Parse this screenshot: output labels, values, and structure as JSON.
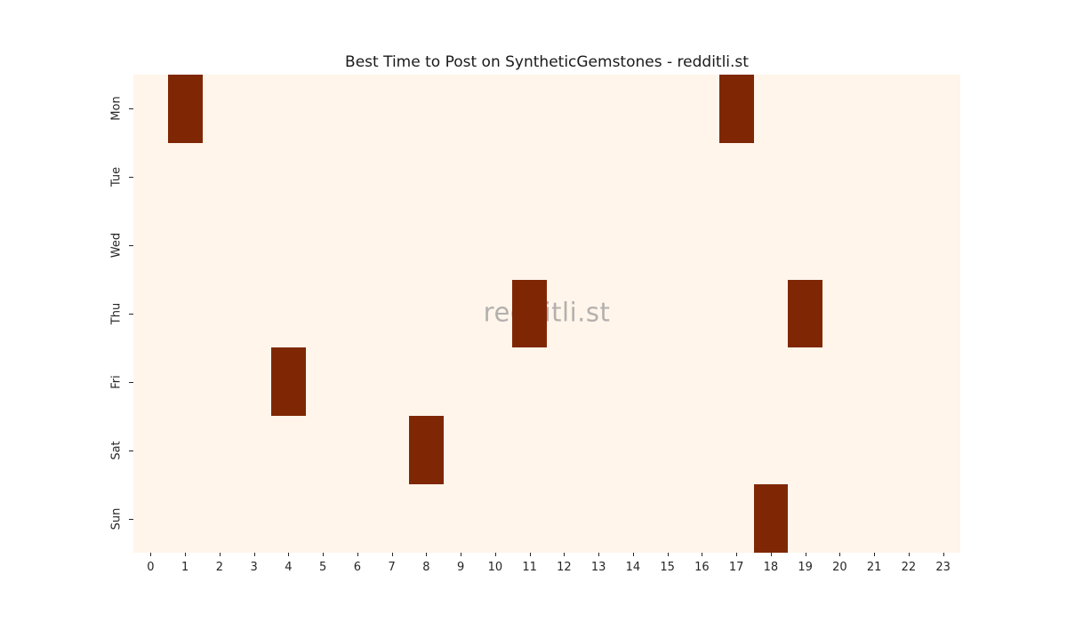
{
  "chart_data": {
    "type": "heatmap",
    "title": "Best Time to Post on SyntheticGemstones - redditli.st",
    "watermark": "redditli.st",
    "xlabel": "",
    "ylabel": "",
    "x_tick_labels": [
      "0",
      "1",
      "2",
      "3",
      "4",
      "5",
      "6",
      "7",
      "8",
      "9",
      "10",
      "11",
      "12",
      "13",
      "14",
      "15",
      "16",
      "17",
      "18",
      "19",
      "20",
      "21",
      "22",
      "23"
    ],
    "y_tick_labels": [
      "Mon",
      "Tue",
      "Wed",
      "Thu",
      "Fri",
      "Sat",
      "Sun"
    ],
    "grid": false,
    "legend": "none",
    "colormap": "Oranges",
    "value_range": [
      0,
      1
    ],
    "matrix": [
      [
        0,
        1,
        0,
        0,
        0,
        0,
        0,
        0,
        0,
        0,
        0,
        0,
        0,
        0,
        0,
        0,
        0,
        1,
        0,
        0,
        0,
        0,
        0,
        0
      ],
      [
        0,
        0,
        0,
        0,
        0,
        0,
        0,
        0,
        0,
        0,
        0,
        0,
        0,
        0,
        0,
        0,
        0,
        0,
        0,
        0,
        0,
        0,
        0,
        0
      ],
      [
        0,
        0,
        0,
        0,
        0,
        0,
        0,
        0,
        0,
        0,
        0,
        0,
        0,
        0,
        0,
        0,
        0,
        0,
        0,
        0,
        0,
        0,
        0,
        0
      ],
      [
        0,
        0,
        0,
        0,
        0,
        0,
        0,
        0,
        0,
        0,
        0,
        1,
        0,
        0,
        0,
        0,
        0,
        0,
        0,
        1,
        0,
        0,
        0,
        0
      ],
      [
        0,
        0,
        0,
        0,
        1,
        0,
        0,
        0,
        0,
        0,
        0,
        0,
        0,
        0,
        0,
        0,
        0,
        0,
        0,
        0,
        0,
        0,
        0,
        0
      ],
      [
        0,
        0,
        0,
        0,
        0,
        0,
        0,
        0,
        1,
        0,
        0,
        0,
        0,
        0,
        0,
        0,
        0,
        0,
        0,
        0,
        0,
        0,
        0,
        0
      ],
      [
        0,
        0,
        0,
        0,
        0,
        0,
        0,
        0,
        0,
        0,
        0,
        0,
        0,
        0,
        0,
        0,
        0,
        0,
        1,
        0,
        0,
        0,
        0,
        0
      ]
    ],
    "highlighted_cells": [
      {
        "day": "Mon",
        "hour": 1,
        "value": 1
      },
      {
        "day": "Mon",
        "hour": 17,
        "value": 1
      },
      {
        "day": "Thu",
        "hour": 11,
        "value": 1
      },
      {
        "day": "Thu",
        "hour": 19,
        "value": 1
      },
      {
        "day": "Fri",
        "hour": 4,
        "value": 1
      },
      {
        "day": "Sat",
        "hour": 8,
        "value": 1
      },
      {
        "day": "Sun",
        "hour": 18,
        "value": 1
      }
    ],
    "colors": {
      "cell_low": "#fff5eb",
      "cell_high": "#7f2704",
      "watermark": "#b3b0ad",
      "title_text": "#1a1a1a",
      "tick_text": "#262626",
      "tick_mark": "#262626",
      "figure_background": "#ffffff"
    }
  }
}
